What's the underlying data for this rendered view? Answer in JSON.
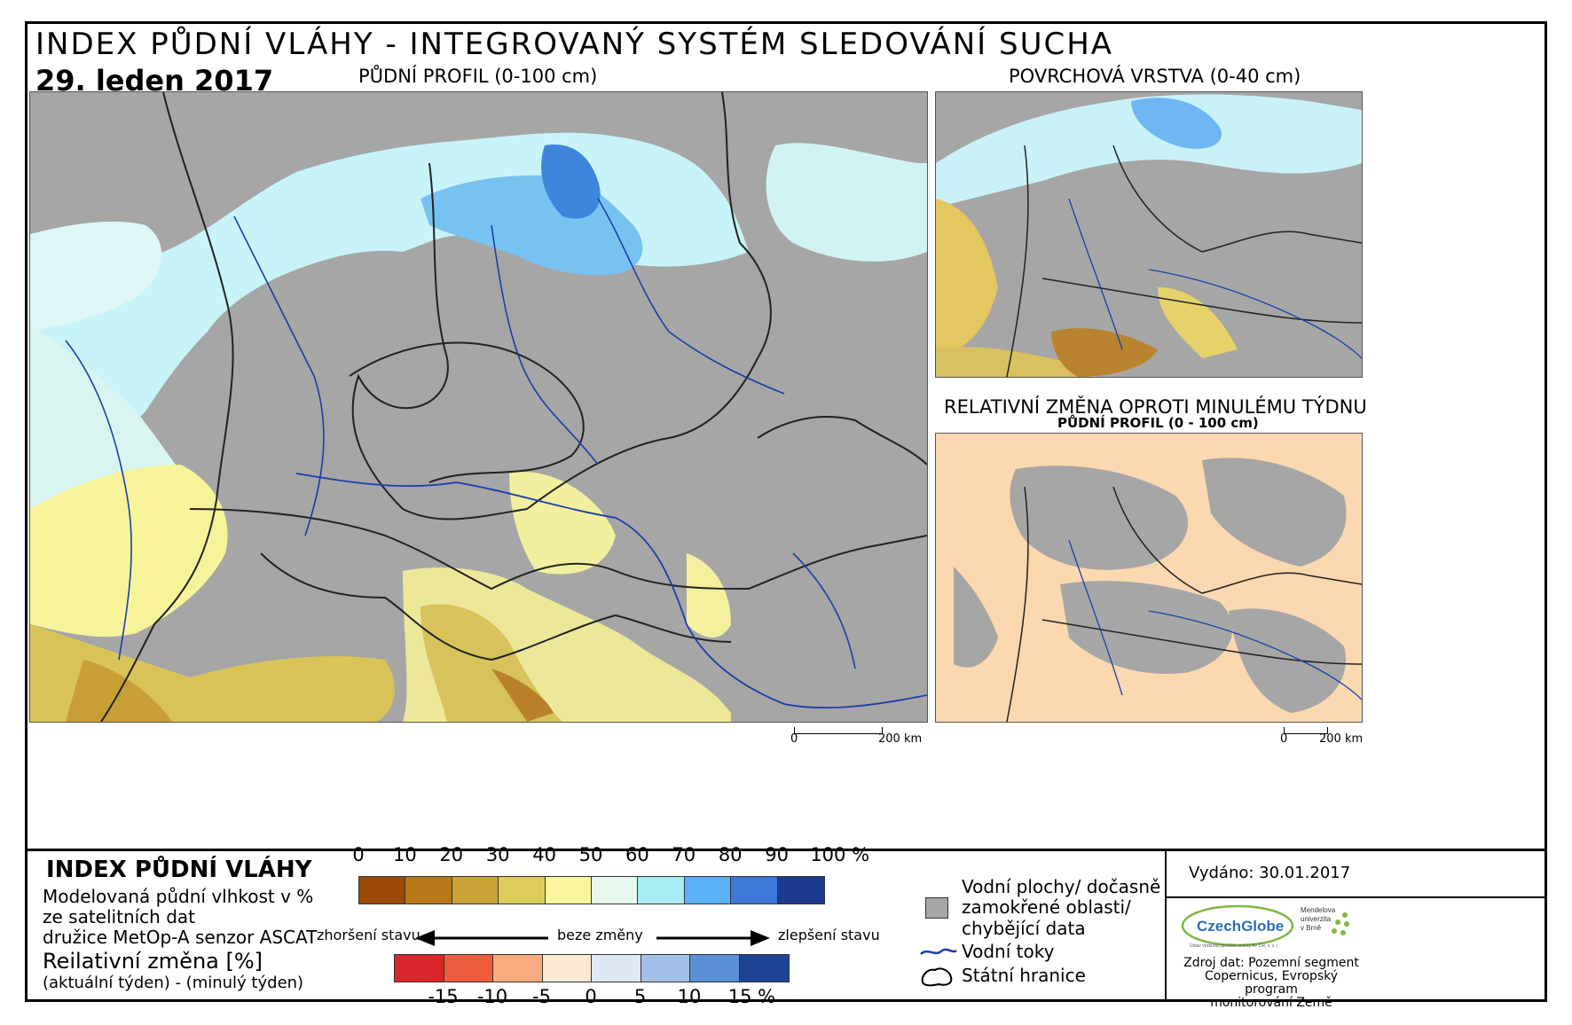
{
  "header": {
    "title": "INDEX PŮDNÍ VLÁHY - INTEGROVANÝ SYSTÉM SLEDOVÁNÍ SUCHA",
    "date": "29. leden 2017"
  },
  "maps": {
    "main_title": "PŮDNÍ PROFIL (0-100 cm)",
    "surface_title": "POVRCHOVÁ VRSTVA (0-40 cm)",
    "change_title": "RELATIVNÍ ZMĚNA OPROTI MINULÉMU TÝDNU",
    "change_subtitle": "PŮDNÍ PROFIL (0 - 100 cm)",
    "scale_zero": "0",
    "scale_label": "200 km"
  },
  "legend": {
    "title": "INDEX PŮDNÍ VLÁHY",
    "desc_line1": "Modelovaná půdní vlhkost v %",
    "desc_line2": "ze satelitních dat",
    "desc_line3": "družice MetOp-A senzor ASCAT",
    "change_title": "Reilativní změna [%]",
    "change_desc": "(aktuální týden) - (minulý týden)",
    "index_ticks": [
      "0",
      "10",
      "20",
      "30",
      "40",
      "50",
      "60",
      "70",
      "80",
      "90",
      "100 %"
    ],
    "index_colors": [
      "#9c4a06",
      "#b8781a",
      "#c9a337",
      "#dccd5b",
      "#f8f59a",
      "#e6f8ee",
      "#a9ecf5",
      "#5ab0f5",
      "#3b78d8",
      "#1c3a8e"
    ],
    "worse_label": "zhoršení stavu",
    "nochange_label": "beze změny",
    "better_label": "zlepšení stavu",
    "change_ticks": [
      "-15",
      "-10",
      "-5",
      "0",
      "5",
      "10",
      "15 %"
    ],
    "change_colors": [
      "#d8262a",
      "#ee5c3c",
      "#f8ab7e",
      "#fde8cf",
      "#dde8f4",
      "#a2c0e6",
      "#5b8fd6",
      "#1e4595"
    ],
    "water_label_line1": "Vodní plochy/ dočasně",
    "water_label_line2": "zamokřené oblasti/",
    "water_label_line3": "chybějící data",
    "rivers_label": "Vodní toky",
    "borders_label": "Státní hranice"
  },
  "footer": {
    "issued": "Vydáno: 30.01.2017",
    "logo_czechglobe": "CzechGlobe",
    "logo_czechglobe_sub": "Ústav výzkumu globální změny AV ČR, v. v. i.",
    "logo_mendel_line1": "Mendelova",
    "logo_mendel_line2": "univerzita",
    "logo_mendel_line3": "v Brně",
    "source_line1": "Zdroj dat: Pozemní segment",
    "source_line2": "Copernicus, Evropský program",
    "source_line3": "monitorování Země"
  },
  "colors": {
    "nodata": "#a6a6a6",
    "river": "#1a3fa8",
    "border": "#222222",
    "change_bg": "#fbd8b0"
  }
}
